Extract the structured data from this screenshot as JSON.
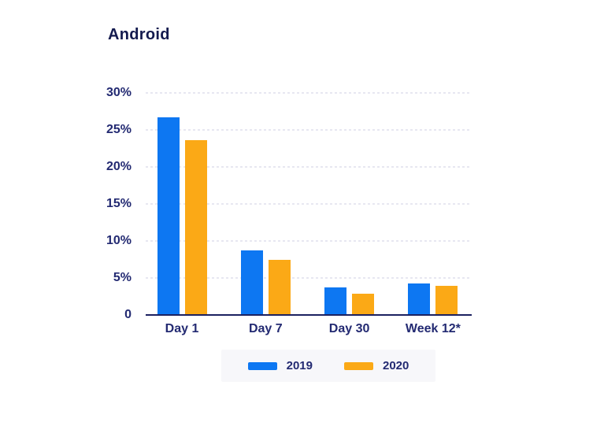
{
  "page": {
    "background": "#ffffff"
  },
  "chart_data": {
    "type": "bar",
    "title": "Android",
    "categories": [
      "Day 1",
      "Day 7",
      "Day 30",
      "Week 12*"
    ],
    "series": [
      {
        "name": "2019",
        "color": "#0d77f2",
        "values": [
          26.6,
          8.6,
          3.6,
          4.1
        ]
      },
      {
        "name": "2020",
        "color": "#fba916",
        "values": [
          23.5,
          7.3,
          2.8,
          3.8
        ]
      }
    ],
    "xlabel": "",
    "ylabel": "",
    "ylim": [
      0,
      30
    ],
    "yticks": [
      {
        "value": 0,
        "label": "0"
      },
      {
        "value": 5,
        "label": "5%"
      },
      {
        "value": 10,
        "label": "10%"
      },
      {
        "value": 15,
        "label": "15%"
      },
      {
        "value": 20,
        "label": "20%"
      },
      {
        "value": 25,
        "label": "25%"
      },
      {
        "value": 30,
        "label": "30%"
      }
    ],
    "grid": "horizontal-dashed",
    "legend_position": "bottom-center"
  },
  "colors": {
    "title_text": "#131a4e",
    "label_text": "#232a72",
    "axis_line": "#1b2160",
    "gridline": "#e7e7f1",
    "legend_background": "#f7f7fa",
    "series_2019": "#0d77f2",
    "series_2020": "#fba916"
  }
}
